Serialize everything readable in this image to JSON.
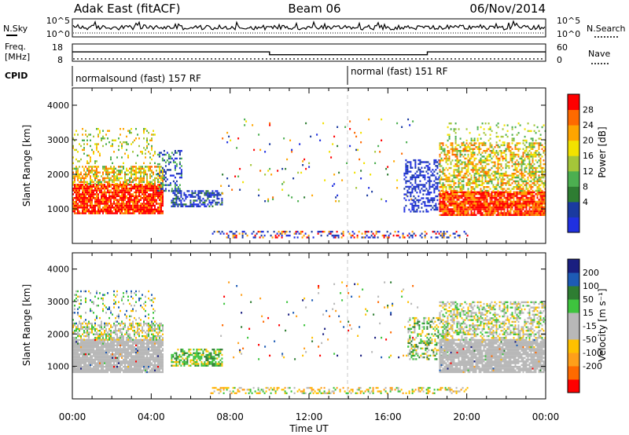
{
  "header": {
    "station": "Adak East (fitACF)",
    "beam": "Beam 06",
    "date": "06/Nov/2014"
  },
  "top_panel": {
    "left_label": "N.Sky",
    "right_label": "N.Search",
    "left_ticks": [
      "10^5",
      "10^0"
    ],
    "right_ticks": [
      "10^5",
      "10^0"
    ]
  },
  "freq_panel": {
    "left_label": "Freq.",
    "left_unit": "[MHz]",
    "right_label": "Nave",
    "left_ticks": [
      "18",
      "8"
    ],
    "right_ticks": [
      "60",
      "0"
    ],
    "freq_steps": [
      {
        "from": "00:00",
        "to": "10:00",
        "value": 13.5
      },
      {
        "from": "10:00",
        "to": "18:00",
        "value": 11.5
      },
      {
        "from": "18:00",
        "to": "24:00",
        "value": 13.5
      }
    ]
  },
  "cpid": {
    "label": "CPID",
    "modes": [
      {
        "label": "normalsound (fast) 157 RF",
        "from": "00:00",
        "to": "14:00"
      },
      {
        "label": "normal (fast) 151 RF",
        "from": "14:00",
        "to": "24:00"
      }
    ]
  },
  "x_axis": {
    "label": "Time UT",
    "ticks": [
      "00:00",
      "04:00",
      "08:00",
      "12:00",
      "16:00",
      "20:00",
      "00:00"
    ]
  },
  "colors": {
    "power": [
      "#2030e0",
      "#1a3aa0",
      "#2e7d32",
      "#4caf50",
      "#a4c639",
      "#f2e200",
      "#ffa500",
      "#ff6a00",
      "#ff0000"
    ],
    "velocity": [
      "#ff0000",
      "#ff6a00",
      "#ff9f1a",
      "#ffc000",
      "#b8b8b8",
      "#b8b8b8",
      "#3ec43e",
      "#2e7d32",
      "#1d5bb5",
      "#1a1f80"
    ]
  },
  "chart_data": [
    {
      "type": "heatmap",
      "name": "power",
      "ylabel": "Slant Range [km]",
      "xlabel": "Time UT",
      "x_range_hours": [
        0,
        24
      ],
      "ylim": [
        0,
        4500
      ],
      "y_ticks": [
        1000,
        2000,
        3000,
        4000
      ],
      "colorbar": {
        "label": "Power [dB]",
        "tick_labels": [
          "28",
          "24",
          "20",
          "16",
          "12",
          "8",
          "4"
        ],
        "range": [
          0,
          32
        ]
      },
      "features": [
        {
          "band": "main echo",
          "time": [
            "00:00",
            "04:30"
          ],
          "range_km": [
            900,
            1800
          ],
          "power_db": [
            20,
            32
          ]
        },
        {
          "band": "upper echo",
          "time": [
            "00:00",
            "04:30"
          ],
          "range_km": [
            1900,
            2300
          ],
          "power_db": [
            12,
            24
          ]
        },
        {
          "band": "low-power blob",
          "time": [
            "05:00",
            "07:30"
          ],
          "range_km": [
            1000,
            1500
          ],
          "power_db": [
            2,
            8
          ]
        },
        {
          "band": "low-power blob",
          "time": [
            "17:00",
            "18:30"
          ],
          "range_km": [
            900,
            2200
          ],
          "power_db": [
            2,
            8
          ]
        },
        {
          "band": "main echo",
          "time": [
            "18:30",
            "24:00"
          ],
          "range_km": [
            800,
            1800
          ],
          "power_db": [
            20,
            32
          ]
        },
        {
          "band": "upper echo",
          "time": [
            "19:00",
            "24:00"
          ],
          "range_km": [
            2000,
            2800
          ],
          "power_db": [
            12,
            24
          ]
        }
      ]
    },
    {
      "type": "heatmap",
      "name": "velocity",
      "ylabel": "Slant Range [km]",
      "xlabel": "Time UT",
      "x_range_hours": [
        0,
        24
      ],
      "ylim": [
        0,
        4500
      ],
      "y_ticks": [
        1000,
        2000,
        3000,
        4000
      ],
      "colorbar": {
        "label": "Velocity [m s⁻¹]",
        "tick_labels": [
          "200",
          "100",
          "50",
          "15",
          "-15",
          "-50",
          "-100",
          "-200"
        ],
        "range": [
          -250,
          250
        ]
      },
      "features": [
        {
          "band": "ground scatter",
          "time": [
            "00:00",
            "04:30"
          ],
          "range_km": [
            800,
            1800
          ],
          "velocity": [
            -15,
            15
          ]
        },
        {
          "band": "ionospheric echo",
          "time": [
            "05:00",
            "07:30"
          ],
          "range_km": [
            1000,
            1500
          ],
          "velocity": [
            15,
            80
          ]
        },
        {
          "band": "ground scatter",
          "time": [
            "18:30",
            "24:00"
          ],
          "range_km": [
            800,
            1800
          ],
          "velocity": [
            -15,
            15
          ]
        },
        {
          "band": "ionospheric echo",
          "time": [
            "17:30",
            "20:00"
          ],
          "range_km": [
            1500,
            2400
          ],
          "velocity": [
            15,
            80
          ]
        }
      ]
    }
  ]
}
